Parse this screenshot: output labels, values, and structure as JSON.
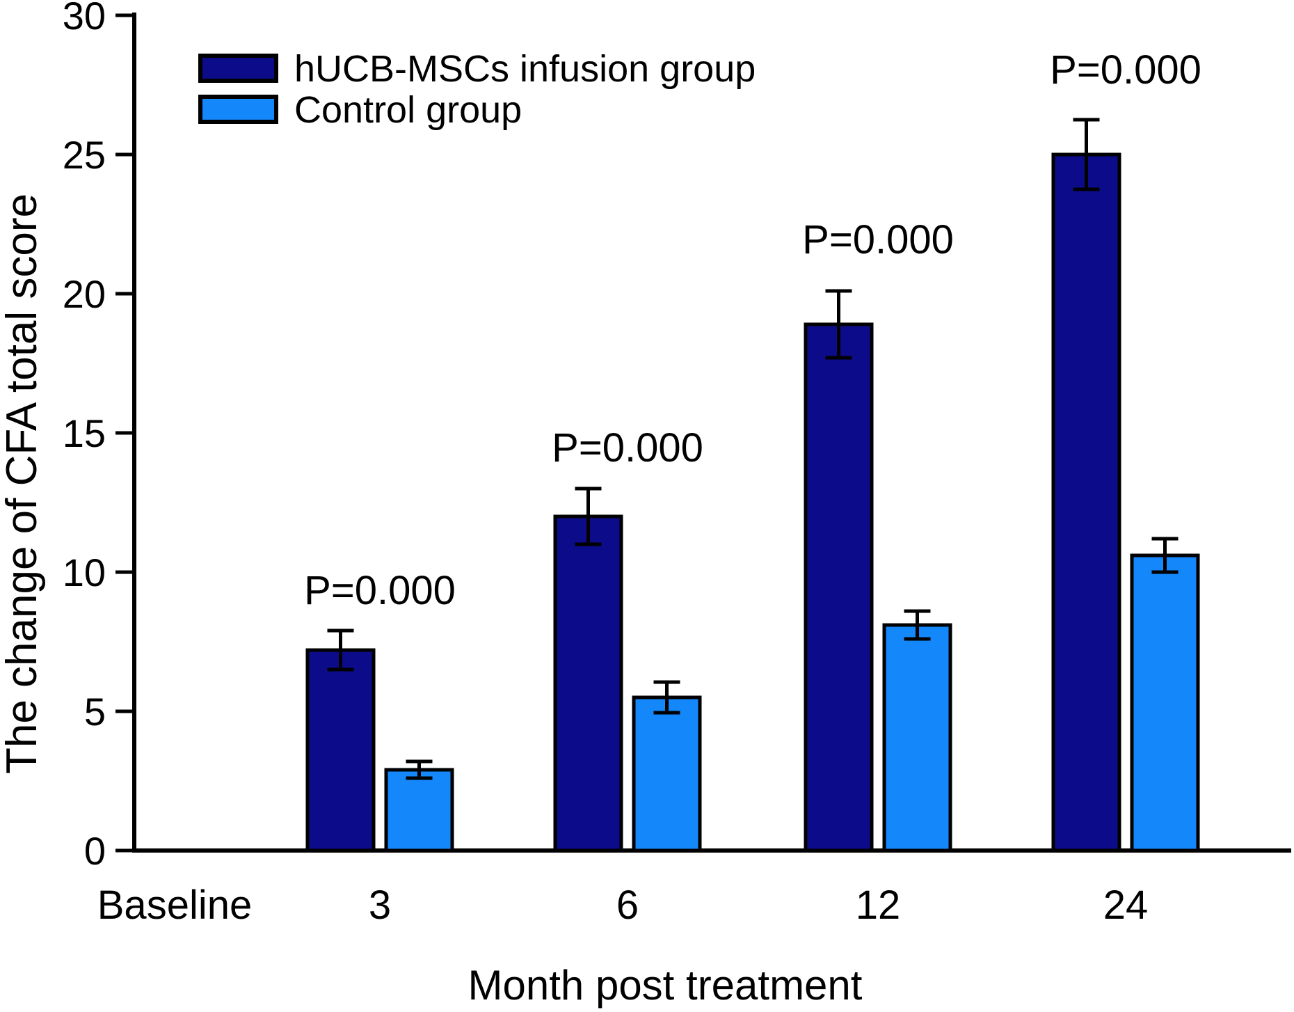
{
  "chart_data": {
    "type": "bar",
    "title": "",
    "xlabel": "Month post treatment",
    "ylabel": "The change of CFA total score",
    "categories": [
      "Baseline",
      "3",
      "6",
      "12",
      "24"
    ],
    "series": [
      {
        "name": "hUCB-MSCs infusion group",
        "color": "#0c0c8a",
        "values": [
          null,
          7.2,
          12.0,
          18.9,
          25.0
        ],
        "errors": [
          null,
          0.7,
          1.0,
          1.2,
          1.25
        ]
      },
      {
        "name": "Control group",
        "color": "#1487fb",
        "values": [
          null,
          2.9,
          5.5,
          8.1,
          10.6
        ],
        "errors": [
          null,
          0.3,
          0.55,
          0.5,
          0.6
        ]
      }
    ],
    "annotations": [
      {
        "text": "P=0.000",
        "category": "3"
      },
      {
        "text": "P=0.000",
        "category": "6"
      },
      {
        "text": "P=0.000",
        "category": "12"
      },
      {
        "text": "P=0.000",
        "category": "24"
      }
    ],
    "ylim": [
      0,
      30
    ],
    "yticks": [
      0,
      5,
      10,
      15,
      20,
      25,
      30
    ],
    "grid": false,
    "legend_position": "top-left",
    "bar_outline_color": "#000000",
    "error_bar_color": "#000000",
    "axis_color": "#000000"
  }
}
